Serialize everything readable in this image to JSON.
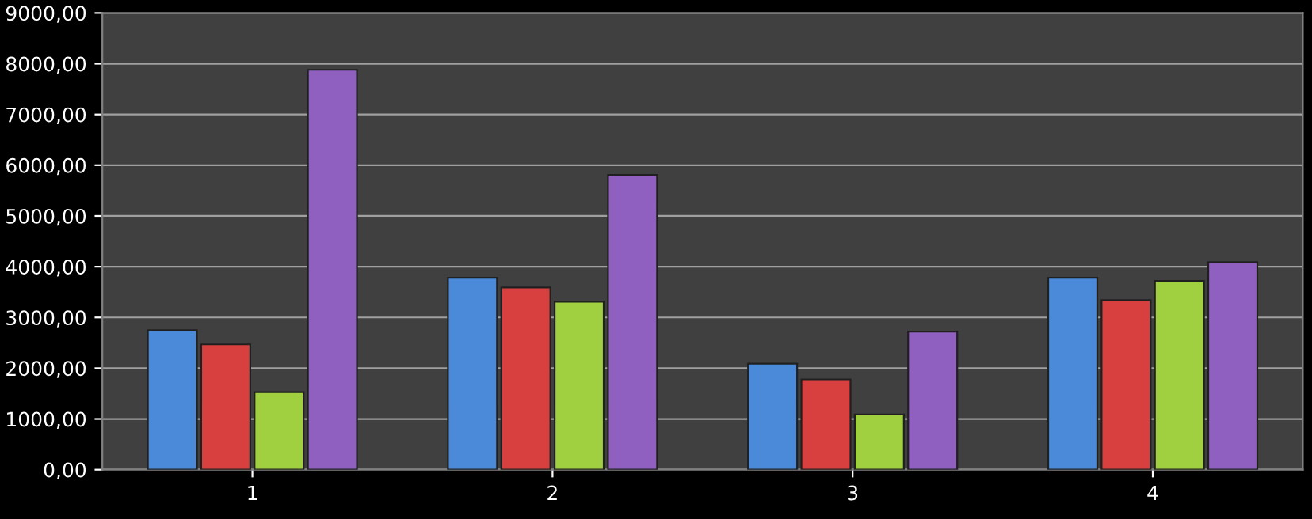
{
  "chart_data": {
    "type": "bar",
    "categories": [
      "1",
      "2",
      "3",
      "4"
    ],
    "series": [
      {
        "color": "#4a8ad8",
        "values": [
          2750,
          3780,
          2090,
          3780
        ]
      },
      {
        "color": "#d84040",
        "values": [
          2470,
          3590,
          1780,
          3340
        ]
      },
      {
        "color": "#a0d040",
        "values": [
          1530,
          3310,
          1090,
          3720
        ]
      },
      {
        "color": "#9060c0",
        "values": [
          7880,
          5810,
          2720,
          4090
        ]
      }
    ],
    "ylim": [
      0,
      9000
    ],
    "yticks": [
      {
        "value": 0,
        "label": "0,00"
      },
      {
        "value": 1000,
        "label": "1000,00"
      },
      {
        "value": 2000,
        "label": "2000,00"
      },
      {
        "value": 3000,
        "label": "3000,00"
      },
      {
        "value": 4000,
        "label": "4000,00"
      },
      {
        "value": 5000,
        "label": "5000,00"
      },
      {
        "value": 6000,
        "label": "6000,00"
      },
      {
        "value": 7000,
        "label": "7000,00"
      },
      {
        "value": 8000,
        "label": "8000,00"
      },
      {
        "value": 9000,
        "label": "9000,00"
      }
    ],
    "grid": "y"
  }
}
